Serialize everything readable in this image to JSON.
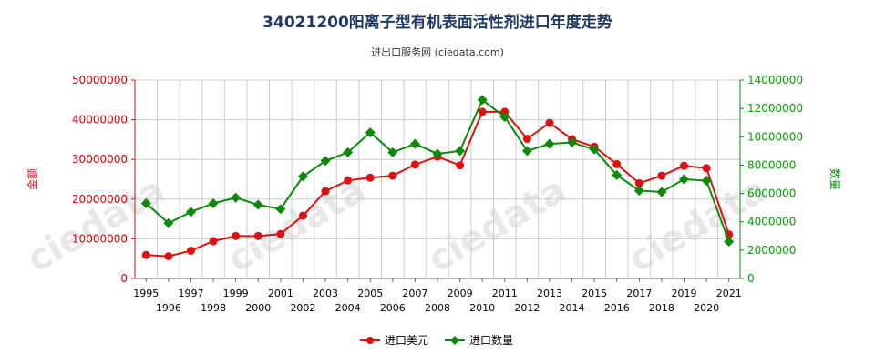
{
  "title": "34021200阳离子型有机表面活性剂进口年度走势",
  "subtitle": "进出口服务网 (ciedata.com)",
  "colors": {
    "amount": "#e01010",
    "quantity": "#0a8a0a",
    "grid": "#cccccc"
  },
  "chart_data": {
    "type": "line",
    "title": "34021200阳离子型有机表面活性剂进口年度走势",
    "subtitle": "进出口服务网 (ciedata.com)",
    "x": [
      1995,
      1996,
      1997,
      1998,
      1999,
      2000,
      2001,
      2002,
      2003,
      2004,
      2005,
      2006,
      2007,
      2008,
      2009,
      2010,
      2011,
      2012,
      2013,
      2014,
      2015,
      2016,
      2017,
      2018,
      2019,
      2020,
      2021
    ],
    "ylabel_left": "金额",
    "ylabel_right": "数量",
    "ylim_left": [
      0,
      50000000
    ],
    "ylim_right": [
      0,
      14000000
    ],
    "yticks_left": [
      "0",
      "10000000",
      "20000000",
      "30000000",
      "40000000",
      "50000000"
    ],
    "yticks_right": [
      "0",
      "2000000",
      "4000000",
      "6000000",
      "8000000",
      "10000000",
      "12000000",
      "14000000"
    ],
    "grid": true,
    "legend_position": "bottom",
    "series": [
      {
        "name": "进口美元",
        "axis": "left",
        "color": "#e01010",
        "marker": "circle",
        "values": [
          5900000,
          5600000,
          7000000,
          9400000,
          10700000,
          10700000,
          11200000,
          15800000,
          22000000,
          24700000,
          25400000,
          25900000,
          28700000,
          30700000,
          28500000,
          42000000,
          42000000,
          35200000,
          39200000,
          35100000,
          33200000,
          28800000,
          24000000,
          25900000,
          28400000,
          27800000,
          11100000
        ]
      },
      {
        "name": "进口数量",
        "axis": "right",
        "color": "#0a8a0a",
        "marker": "diamond",
        "values": [
          5300000,
          3900000,
          4700000,
          5300000,
          5700000,
          5200000,
          4900000,
          7200000,
          8300000,
          8900000,
          10300000,
          8900000,
          9500000,
          8800000,
          9000000,
          12600000,
          11400000,
          9000000,
          9500000,
          9600000,
          9100000,
          7300000,
          6200000,
          6100000,
          7000000,
          6900000,
          2600000
        ]
      }
    ]
  }
}
